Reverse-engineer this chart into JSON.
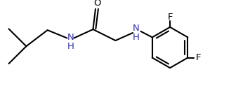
{
  "background_color": "#ffffff",
  "bond_color": "#000000",
  "atom_color_N": "#3333aa",
  "atom_color_O": "#000000",
  "atom_color_F": "#000000",
  "lw": 1.5,
  "fontsize": 9.5,
  "xlim": [
    0,
    10
  ],
  "ylim": [
    0,
    3.8
  ],
  "figsize": [
    3.56,
    1.36
  ],
  "dpi": 100
}
